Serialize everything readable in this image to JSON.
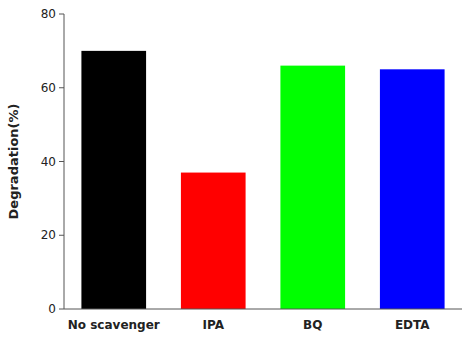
{
  "chart_data": {
    "type": "bar",
    "categories": [
      "No scavenger",
      "IPA",
      "BQ",
      "EDTA"
    ],
    "values": [
      70,
      37,
      66,
      65
    ],
    "colors": [
      "#000000",
      "#ff0000",
      "#00ff00",
      "#0000ff"
    ],
    "ylabel": "Degradation(%)",
    "ylim": [
      0,
      80
    ],
    "yticks": [
      0,
      20,
      40,
      60,
      80
    ],
    "grid": false
  }
}
